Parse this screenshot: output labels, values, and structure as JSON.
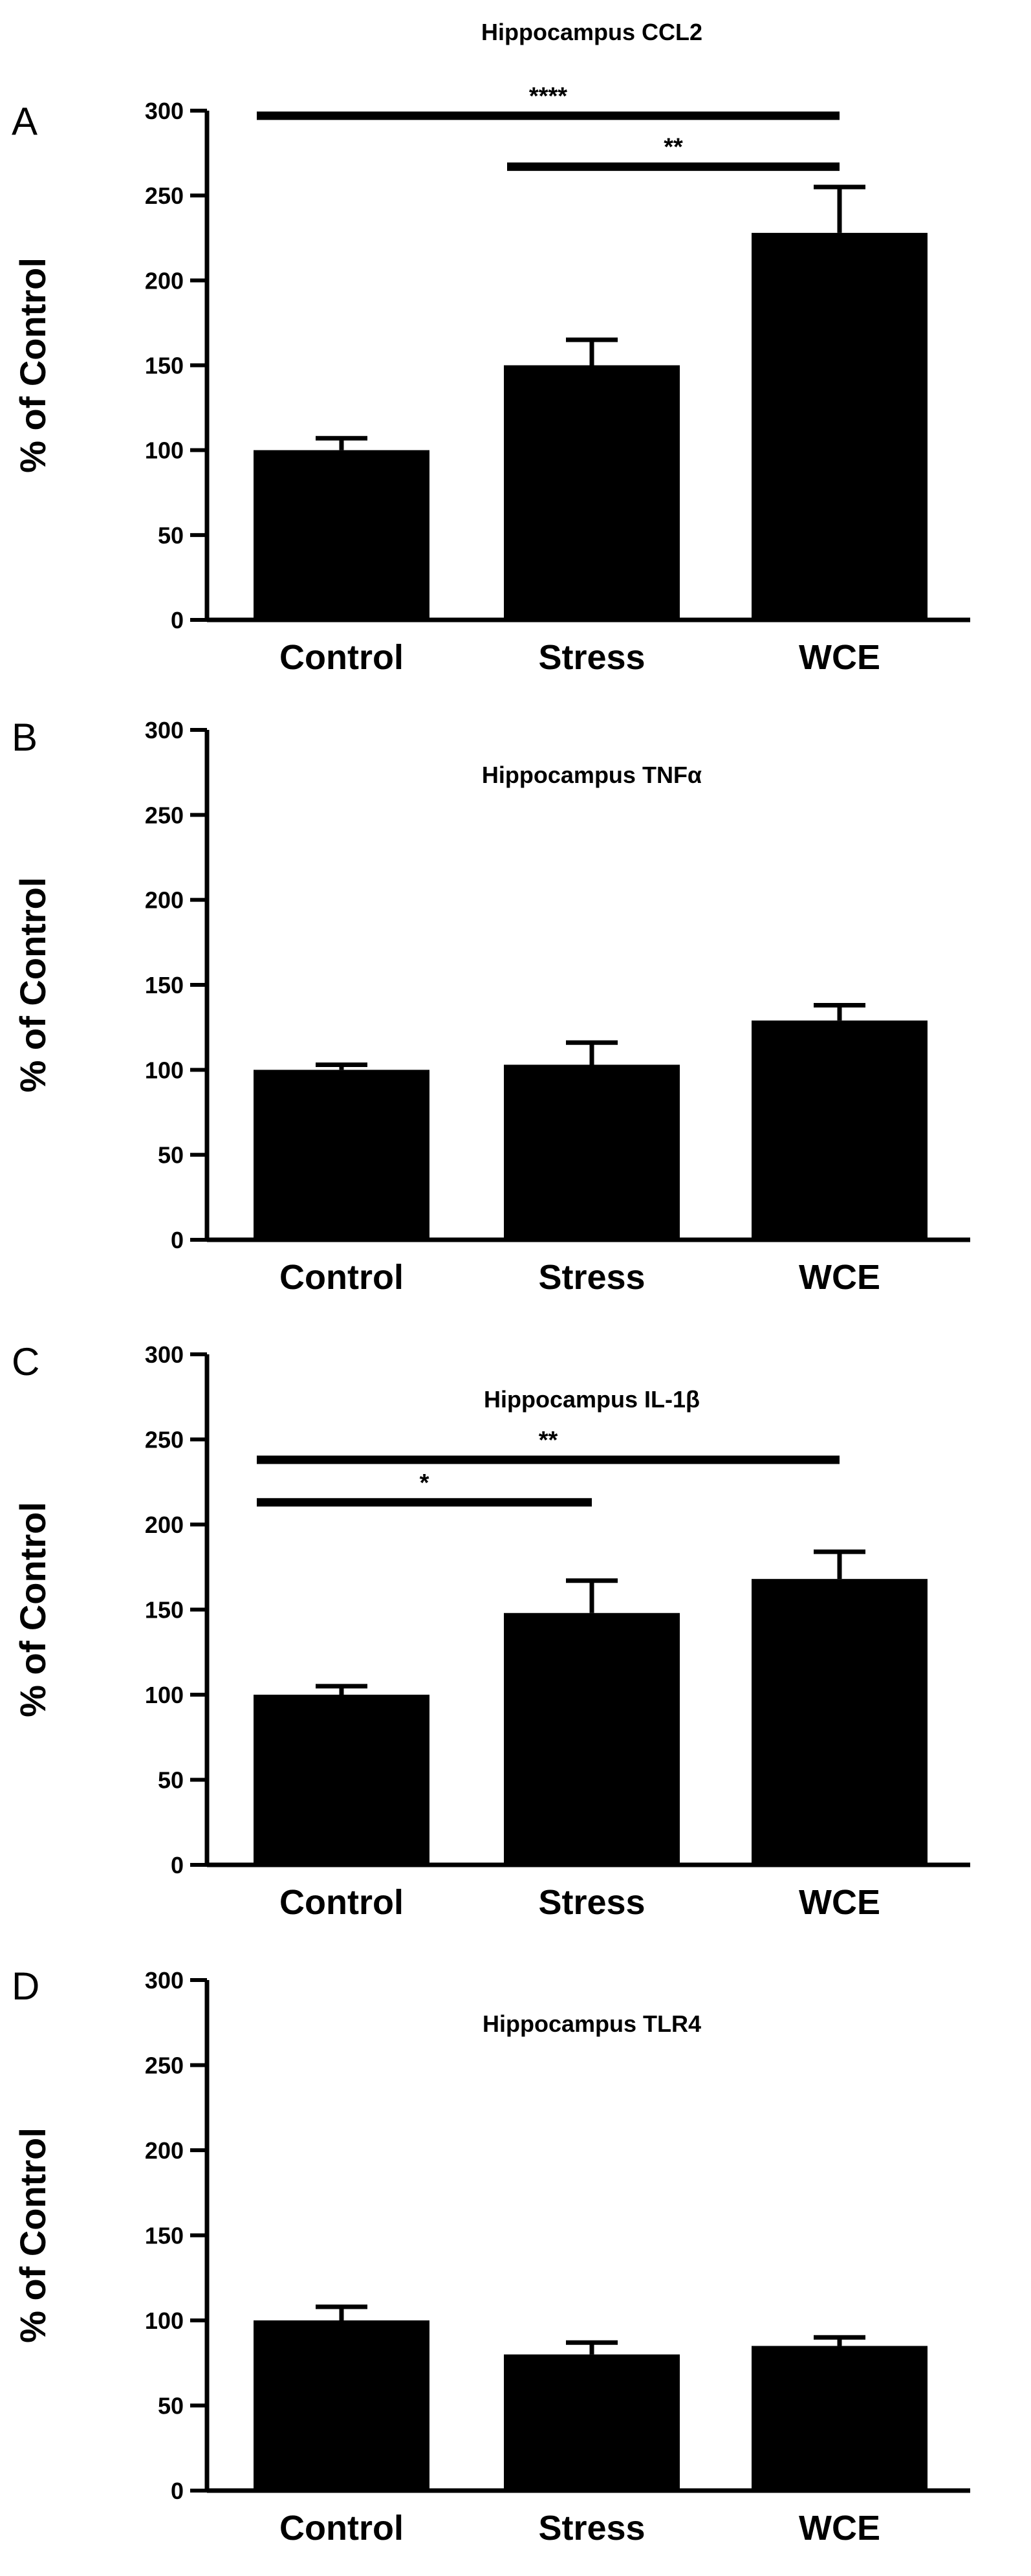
{
  "chart_data": [
    {
      "type": "bar",
      "panel": "A",
      "title": "Hippocampus CCL2",
      "ylabel": "% of Control",
      "xlabel": "",
      "categories": [
        "Control",
        "Stress",
        "WCE"
      ],
      "values": [
        100,
        150,
        228
      ],
      "errors": [
        7,
        15,
        27
      ],
      "ylim": [
        0,
        300
      ],
      "yticks": [
        0,
        50,
        100,
        150,
        200,
        250,
        300
      ],
      "grid": false,
      "color": "#000000",
      "significance": [
        {
          "from": 0,
          "to": 2,
          "label": "****",
          "y": 297
        },
        {
          "from": 1,
          "to": 2,
          "label": "**",
          "y": 267
        }
      ]
    },
    {
      "type": "bar",
      "panel": "B",
      "title": "Hippocampus TNFα",
      "ylabel": "% of Control",
      "xlabel": "",
      "categories": [
        "Control",
        "Stress",
        "WCE"
      ],
      "values": [
        100,
        103,
        129
      ],
      "errors": [
        3,
        13,
        9
      ],
      "ylim": [
        0,
        300
      ],
      "yticks": [
        0,
        50,
        100,
        150,
        200,
        250,
        300
      ],
      "grid": false,
      "color": "#000000",
      "significance": []
    },
    {
      "type": "bar",
      "panel": "C",
      "title": "Hippocampus IL-1β",
      "ylabel": "% of Control",
      "xlabel": "",
      "categories": [
        "Control",
        "Stress",
        "WCE"
      ],
      "values": [
        100,
        148,
        168
      ],
      "errors": [
        5,
        19,
        16
      ],
      "ylim": [
        0,
        300
      ],
      "yticks": [
        0,
        50,
        100,
        150,
        200,
        250,
        300
      ],
      "grid": false,
      "color": "#000000",
      "significance": [
        {
          "from": 0,
          "to": 2,
          "label": "**",
          "y": 238
        },
        {
          "from": 0,
          "to": 1,
          "label": "*",
          "y": 213
        }
      ]
    },
    {
      "type": "bar",
      "panel": "D",
      "title": "Hippocampus TLR4",
      "ylabel": "% of Control",
      "xlabel": "",
      "categories": [
        "Control",
        "Stress",
        "WCE"
      ],
      "values": [
        100,
        80,
        85
      ],
      "errors": [
        8,
        7,
        5
      ],
      "ylim": [
        0,
        300
      ],
      "yticks": [
        0,
        50,
        100,
        150,
        200,
        250,
        300
      ],
      "grid": false,
      "color": "#000000",
      "significance": []
    }
  ]
}
